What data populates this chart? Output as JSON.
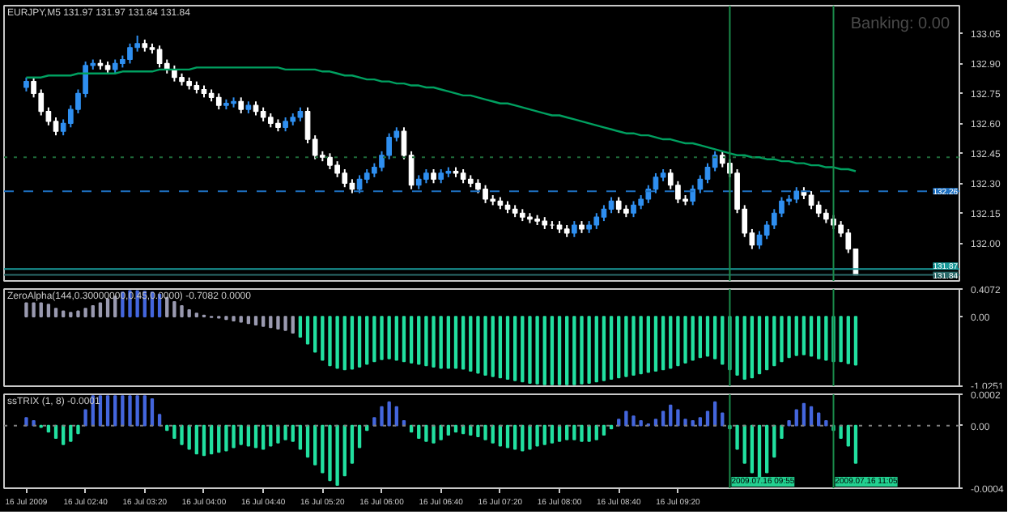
{
  "chart_data": [
    {
      "type": "candlestick",
      "title": "EURJPY,M5 131.97 131.97 131.84 131.84",
      "tick_labels": "y",
      "x": [
        "2009-07-16T02:00",
        "2009-07-16T02:05",
        "2009-07-16T02:10",
        "2009-07-16T02:15",
        "2009-07-16T02:20",
        "2009-07-16T02:25",
        "2009-07-16T02:30",
        "2009-07-16T02:35",
        "2009-07-16T02:40",
        "2009-07-16T02:45",
        "2009-07-16T02:50",
        "2009-07-16T02:55",
        "2009-07-16T03:00",
        "2009-07-16T03:05",
        "2009-07-16T03:10",
        "2009-07-16T03:15",
        "2009-07-16T03:20",
        "2009-07-16T03:25",
        "2009-07-16T03:30",
        "2009-07-16T03:35",
        "2009-07-16T03:40",
        "2009-07-16T03:45",
        "2009-07-16T03:50",
        "2009-07-16T03:55",
        "2009-07-16T04:00",
        "2009-07-16T04:05",
        "2009-07-16T04:10",
        "2009-07-16T04:15",
        "2009-07-16T04:20",
        "2009-07-16T04:25",
        "2009-07-16T04:30",
        "2009-07-16T04:35",
        "2009-07-16T04:40",
        "2009-07-16T04:45",
        "2009-07-16T04:50",
        "2009-07-16T04:55",
        "2009-07-16T05:00",
        "2009-07-16T05:05",
        "2009-07-16T05:10",
        "2009-07-16T05:15",
        "2009-07-16T05:20",
        "2009-07-16T05:25",
        "2009-07-16T05:30",
        "2009-07-16T05:35",
        "2009-07-16T05:40",
        "2009-07-16T05:45",
        "2009-07-16T05:50",
        "2009-07-16T05:55",
        "2009-07-16T06:00",
        "2009-07-16T06:05",
        "2009-07-16T06:10",
        "2009-07-16T06:15",
        "2009-07-16T06:20",
        "2009-07-16T06:25",
        "2009-07-16T06:30",
        "2009-07-16T06:35",
        "2009-07-16T06:40",
        "2009-07-16T06:45",
        "2009-07-16T06:50",
        "2009-07-16T06:55",
        "2009-07-16T07:00",
        "2009-07-16T07:05",
        "2009-07-16T07:10",
        "2009-07-16T07:15",
        "2009-07-16T07:20",
        "2009-07-16T07:25",
        "2009-07-16T07:30",
        "2009-07-16T07:35",
        "2009-07-16T07:40",
        "2009-07-16T07:45",
        "2009-07-16T07:50",
        "2009-07-16T07:55",
        "2009-07-16T08:00",
        "2009-07-16T08:05",
        "2009-07-16T08:10",
        "2009-07-16T08:15",
        "2009-07-16T08:20",
        "2009-07-16T08:25",
        "2009-07-16T08:30",
        "2009-07-16T08:35",
        "2009-07-16T08:40",
        "2009-07-16T08:45",
        "2009-07-16T08:50",
        "2009-07-16T08:55",
        "2009-07-16T09:00",
        "2009-07-16T09:05",
        "2009-07-16T09:10",
        "2009-07-16T09:15",
        "2009-07-16T09:20",
        "2009-07-16T09:25",
        "2009-07-16T09:30",
        "2009-07-16T09:35",
        "2009-07-16T09:40",
        "2009-07-16T09:45",
        "2009-07-16T09:50",
        "2009-07-16T09:55",
        "2009-07-16T10:00",
        "2009-07-16T10:05",
        "2009-07-16T10:10",
        "2009-07-16T10:15",
        "2009-07-16T10:20",
        "2009-07-16T10:25",
        "2009-07-16T10:30",
        "2009-07-16T10:35",
        "2009-07-16T10:40",
        "2009-07-16T10:45",
        "2009-07-16T10:50",
        "2009-07-16T10:55",
        "2009-07-16T11:00",
        "2009-07-16T11:05",
        "2009-07-16T11:10",
        "2009-07-16T11:15",
        "2009-07-16T11:20"
      ],
      "xlim": [
        "2009-07-16T01:45",
        "2009-07-16T12:30"
      ],
      "ohlc": [
        [
          132.78,
          132.83,
          132.76,
          132.81
        ],
        [
          132.81,
          132.83,
          132.73,
          132.75
        ],
        [
          132.75,
          132.77,
          132.64,
          132.66
        ],
        [
          132.66,
          132.68,
          132.59,
          132.61
        ],
        [
          132.61,
          132.63,
          132.54,
          132.56
        ],
        [
          132.56,
          132.62,
          132.54,
          132.6
        ],
        [
          132.6,
          132.69,
          132.58,
          132.67
        ],
        [
          132.67,
          132.77,
          132.65,
          132.75
        ],
        [
          132.75,
          132.91,
          132.73,
          132.89
        ],
        [
          132.89,
          132.92,
          132.87,
          132.9
        ],
        [
          132.9,
          132.92,
          132.87,
          132.89
        ],
        [
          132.89,
          132.91,
          132.85,
          132.87
        ],
        [
          132.87,
          132.92,
          132.85,
          132.9
        ],
        [
          132.9,
          132.94,
          132.88,
          132.92
        ],
        [
          132.92,
          133.0,
          132.9,
          132.98
        ],
        [
          132.98,
          133.04,
          132.96,
          133.0
        ],
        [
          133.0,
          133.02,
          132.96,
          132.98
        ],
        [
          132.98,
          133.0,
          132.95,
          132.97
        ],
        [
          132.97,
          132.99,
          132.88,
          132.9
        ],
        [
          132.9,
          132.92,
          132.85,
          132.87
        ],
        [
          132.87,
          132.89,
          132.81,
          132.83
        ],
        [
          132.83,
          132.85,
          132.79,
          132.81
        ],
        [
          132.81,
          132.83,
          132.77,
          132.79
        ],
        [
          132.79,
          132.81,
          132.75,
          132.77
        ],
        [
          132.77,
          132.79,
          132.73,
          132.75
        ],
        [
          132.75,
          132.77,
          132.71,
          132.73
        ],
        [
          132.73,
          132.75,
          132.67,
          132.69
        ],
        [
          132.69,
          132.72,
          132.67,
          132.7
        ],
        [
          132.7,
          132.73,
          132.68,
          132.71
        ],
        [
          132.71,
          132.73,
          132.65,
          132.67
        ],
        [
          132.67,
          132.71,
          132.65,
          132.69
        ],
        [
          132.69,
          132.71,
          132.64,
          132.66
        ],
        [
          132.66,
          132.68,
          132.61,
          132.63
        ],
        [
          132.63,
          132.65,
          132.58,
          132.6
        ],
        [
          132.6,
          132.62,
          132.56,
          132.58
        ],
        [
          132.58,
          132.63,
          132.56,
          132.61
        ],
        [
          132.61,
          132.65,
          132.59,
          132.63
        ],
        [
          132.63,
          132.68,
          132.61,
          132.66
        ],
        [
          132.66,
          132.68,
          132.5,
          132.52
        ],
        [
          132.52,
          132.54,
          132.42,
          132.44
        ],
        [
          132.44,
          132.46,
          132.41,
          132.43
        ],
        [
          132.43,
          132.45,
          132.37,
          132.39
        ],
        [
          132.39,
          132.41,
          132.33,
          132.35
        ],
        [
          132.35,
          132.37,
          132.28,
          132.3
        ],
        [
          132.3,
          132.32,
          132.25,
          132.27
        ],
        [
          132.27,
          132.34,
          132.25,
          132.32
        ],
        [
          132.32,
          132.37,
          132.3,
          132.35
        ],
        [
          132.35,
          132.4,
          132.33,
          132.38
        ],
        [
          132.38,
          132.46,
          132.36,
          132.44
        ],
        [
          132.44,
          132.55,
          132.42,
          132.53
        ],
        [
          132.53,
          132.58,
          132.51,
          132.56
        ],
        [
          132.56,
          132.58,
          132.42,
          132.44
        ],
        [
          132.44,
          132.46,
          132.27,
          132.29
        ],
        [
          132.29,
          132.34,
          132.27,
          132.32
        ],
        [
          132.32,
          132.37,
          132.3,
          132.35
        ],
        [
          132.35,
          132.37,
          132.3,
          132.32
        ],
        [
          132.32,
          132.37,
          132.3,
          132.35
        ],
        [
          132.35,
          132.38,
          132.33,
          132.36
        ],
        [
          132.36,
          132.38,
          132.33,
          132.35
        ],
        [
          132.35,
          132.37,
          132.3,
          132.32
        ],
        [
          132.32,
          132.34,
          132.28,
          132.3
        ],
        [
          132.3,
          132.32,
          132.25,
          132.27
        ],
        [
          132.27,
          132.29,
          132.2,
          132.22
        ],
        [
          132.22,
          132.24,
          132.19,
          132.21
        ],
        [
          132.21,
          132.23,
          132.17,
          132.19
        ],
        [
          132.19,
          132.21,
          132.15,
          132.17
        ],
        [
          132.17,
          132.19,
          132.13,
          132.15
        ],
        [
          132.15,
          132.17,
          132.11,
          132.13
        ],
        [
          132.13,
          132.15,
          132.1,
          132.12
        ],
        [
          132.12,
          132.14,
          132.09,
          132.11
        ],
        [
          132.11,
          132.13,
          132.07,
          132.09
        ],
        [
          132.09,
          132.11,
          132.07,
          132.09
        ],
        [
          132.09,
          132.11,
          132.05,
          132.07
        ],
        [
          132.07,
          132.09,
          132.03,
          132.05
        ],
        [
          132.05,
          132.11,
          132.03,
          132.09
        ],
        [
          132.09,
          132.11,
          132.05,
          132.07
        ],
        [
          132.07,
          132.11,
          132.05,
          132.09
        ],
        [
          132.09,
          132.15,
          132.07,
          132.13
        ],
        [
          132.13,
          132.19,
          132.11,
          132.17
        ],
        [
          132.17,
          132.23,
          132.15,
          132.21
        ],
        [
          132.21,
          132.23,
          132.15,
          132.17
        ],
        [
          132.17,
          132.19,
          132.13,
          132.15
        ],
        [
          132.15,
          132.21,
          132.13,
          132.19
        ],
        [
          132.19,
          132.24,
          132.17,
          132.22
        ],
        [
          132.22,
          132.29,
          132.2,
          132.27
        ],
        [
          132.27,
          132.35,
          132.25,
          132.33
        ],
        [
          132.33,
          132.37,
          132.31,
          132.35
        ],
        [
          132.35,
          132.37,
          132.27,
          132.29
        ],
        [
          132.29,
          132.31,
          132.2,
          132.22
        ],
        [
          132.22,
          132.24,
          132.19,
          132.21
        ],
        [
          132.21,
          132.29,
          132.19,
          132.27
        ],
        [
          132.27,
          132.34,
          132.25,
          132.32
        ],
        [
          132.32,
          132.4,
          132.3,
          132.38
        ],
        [
          132.38,
          132.46,
          132.36,
          132.44
        ],
        [
          132.44,
          132.46,
          132.38,
          132.4
        ],
        [
          132.4,
          132.42,
          132.33,
          132.35
        ],
        [
          132.35,
          132.37,
          132.15,
          132.17
        ],
        [
          132.17,
          132.19,
          132.03,
          132.05
        ],
        [
          132.05,
          132.07,
          131.97,
          131.99
        ],
        [
          131.99,
          132.06,
          131.97,
          132.04
        ],
        [
          132.04,
          132.11,
          132.02,
          132.09
        ],
        [
          132.09,
          132.17,
          132.07,
          132.15
        ],
        [
          132.15,
          132.23,
          132.13,
          132.21
        ],
        [
          132.21,
          132.24,
          132.19,
          132.22
        ],
        [
          132.22,
          132.28,
          132.2,
          132.26
        ],
        [
          132.26,
          132.28,
          132.22,
          132.24
        ],
        [
          132.24,
          132.26,
          132.17,
          132.19
        ],
        [
          132.19,
          132.21,
          132.13,
          132.15
        ],
        [
          132.15,
          132.17,
          132.1,
          132.12
        ],
        [
          132.12,
          132.14,
          132.07,
          132.09
        ],
        [
          132.09,
          132.11,
          132.03,
          132.05
        ],
        [
          132.05,
          132.07,
          131.95,
          131.97
        ],
        [
          131.97,
          131.97,
          131.84,
          131.84
        ]
      ],
      "series": [
        {
          "type": "line",
          "color": "#00a060",
          "values": [
            132.83,
            132.83,
            132.83,
            132.84,
            132.84,
            132.84,
            132.84,
            132.85,
            132.85,
            132.85,
            132.85,
            132.85,
            132.85,
            132.86,
            132.86,
            132.86,
            132.86,
            132.86,
            132.87,
            132.87,
            132.87,
            132.87,
            132.87,
            132.88,
            132.88,
            132.88,
            132.88,
            132.88,
            132.88,
            132.88,
            132.88,
            132.88,
            132.88,
            132.88,
            132.88,
            132.87,
            132.87,
            132.87,
            132.87,
            132.87,
            132.86,
            132.86,
            132.85,
            132.84,
            132.84,
            132.83,
            132.82,
            132.82,
            132.81,
            132.81,
            132.8,
            132.8,
            132.79,
            132.79,
            132.78,
            132.78,
            132.77,
            132.76,
            132.75,
            132.74,
            132.74,
            132.73,
            132.72,
            132.71,
            132.7,
            132.7,
            132.69,
            132.68,
            132.67,
            132.66,
            132.65,
            132.64,
            132.64,
            132.63,
            132.62,
            132.61,
            132.6,
            132.59,
            132.58,
            132.57,
            132.56,
            132.55,
            132.55,
            132.54,
            132.54,
            132.53,
            132.52,
            132.52,
            132.51,
            132.5,
            132.5,
            132.49,
            132.48,
            132.47,
            132.46,
            132.45,
            132.44,
            132.44,
            132.43,
            132.43,
            132.42,
            132.42,
            132.41,
            132.41,
            132.4,
            132.4,
            132.39,
            132.39,
            132.38,
            132.38,
            132.37,
            132.37,
            132.36
          ]
        }
      ],
      "ylim": [
        131.81,
        133.19
      ],
      "yticks": [
        133.05,
        {
          "value": 132.9,
          "label": "132.90"
        },
        132.75,
        {
          "value": 132.6,
          "label": "132.60"
        },
        132.45,
        {
          "value": 132.3,
          "label": "132.30"
        },
        132.15,
        {
          "value": 132.0,
          "label": "132.00"
        }
      ],
      "ref_lines": [
        {
          "axis": "y",
          "value": 132.43,
          "color": "#1f6b3a",
          "line_style": "dotted"
        },
        {
          "axis": "y",
          "value": 132.26,
          "label": "132.26",
          "color": "#1e70c0",
          "line_style": "dashed"
        },
        {
          "axis": "y",
          "value": 131.87,
          "label": "131.87",
          "color": "#1a9a9a",
          "line_style": "solid"
        },
        {
          "axis": "y",
          "value": 131.84,
          "label": "131.84",
          "color": "#2a6a6a",
          "line_style": "solid"
        },
        {
          "axis": "x",
          "value": "2009-07-16T09:55",
          "color": "#1a8a4a",
          "line_style": "solid"
        },
        {
          "axis": "x",
          "value": "2009-07-16T11:05",
          "color": "#1a8a4a",
          "line_style": "solid"
        }
      ],
      "annotations": [
        "Banking: 0.00"
      ]
    },
    {
      "type": "bar",
      "title": "ZeroAlpha(144,0.30000000,0.45,0.0000) -0.7082 0.0000",
      "tick_labels": "y",
      "x": [
        "2009-07-16T02:00",
        "2009-07-16T02:05",
        "2009-07-16T02:10",
        "2009-07-16T02:15",
        "2009-07-16T02:20",
        "2009-07-16T02:25",
        "2009-07-16T02:30",
        "2009-07-16T02:35",
        "2009-07-16T02:40",
        "2009-07-16T02:45",
        "2009-07-16T02:50",
        "2009-07-16T02:55",
        "2009-07-16T03:00",
        "2009-07-16T03:05",
        "2009-07-16T03:10",
        "2009-07-16T03:15",
        "2009-07-16T03:20",
        "2009-07-16T03:25",
        "2009-07-16T03:30",
        "2009-07-16T03:35",
        "2009-07-16T03:40",
        "2009-07-16T03:45",
        "2009-07-16T03:50",
        "2009-07-16T03:55",
        "2009-07-16T04:00",
        "2009-07-16T04:05",
        "2009-07-16T04:10",
        "2009-07-16T04:15",
        "2009-07-16T04:20",
        "2009-07-16T04:25",
        "2009-07-16T04:30",
        "2009-07-16T04:35",
        "2009-07-16T04:40",
        "2009-07-16T04:45",
        "2009-07-16T04:50",
        "2009-07-16T04:55",
        "2009-07-16T05:00",
        "2009-07-16T05:05",
        "2009-07-16T05:10",
        "2009-07-16T05:15",
        "2009-07-16T05:20",
        "2009-07-16T05:25",
        "2009-07-16T05:30",
        "2009-07-16T05:35",
        "2009-07-16T05:40",
        "2009-07-16T05:45",
        "2009-07-16T05:50",
        "2009-07-16T05:55",
        "2009-07-16T06:00",
        "2009-07-16T06:05",
        "2009-07-16T06:10",
        "2009-07-16T06:15",
        "2009-07-16T06:20",
        "2009-07-16T06:25",
        "2009-07-16T06:30",
        "2009-07-16T06:35",
        "2009-07-16T06:40",
        "2009-07-16T06:45",
        "2009-07-16T06:50",
        "2009-07-16T06:55",
        "2009-07-16T07:00",
        "2009-07-16T07:05",
        "2009-07-16T07:10",
        "2009-07-16T07:15",
        "2009-07-16T07:20",
        "2009-07-16T07:25",
        "2009-07-16T07:30",
        "2009-07-16T07:35",
        "2009-07-16T07:40",
        "2009-07-16T07:45",
        "2009-07-16T07:50",
        "2009-07-16T07:55",
        "2009-07-16T08:00",
        "2009-07-16T08:05",
        "2009-07-16T08:10",
        "2009-07-16T08:15",
        "2009-07-16T08:20",
        "2009-07-16T08:25",
        "2009-07-16T08:30",
        "2009-07-16T08:35",
        "2009-07-16T08:40",
        "2009-07-16T08:45",
        "2009-07-16T08:50",
        "2009-07-16T08:55",
        "2009-07-16T09:00",
        "2009-07-16T09:05",
        "2009-07-16T09:10",
        "2009-07-16T09:15",
        "2009-07-16T09:20",
        "2009-07-16T09:25",
        "2009-07-16T09:30",
        "2009-07-16T09:35",
        "2009-07-16T09:40",
        "2009-07-16T09:45",
        "2009-07-16T09:50",
        "2009-07-16T09:55",
        "2009-07-16T10:00",
        "2009-07-16T10:05",
        "2009-07-16T10:10",
        "2009-07-16T10:15",
        "2009-07-16T10:20",
        "2009-07-16T10:25",
        "2009-07-16T10:30",
        "2009-07-16T10:35",
        "2009-07-16T10:40",
        "2009-07-16T10:45",
        "2009-07-16T10:50",
        "2009-07-16T10:55",
        "2009-07-16T11:00",
        "2009-07-16T11:05",
        "2009-07-16T11:10",
        "2009-07-16T11:15",
        "2009-07-16T11:20"
      ],
      "xlim": [
        "2009-07-16T01:45",
        "2009-07-16T12:30"
      ],
      "values": [
        0.2,
        0.2,
        0.2,
        0.18,
        0.12,
        0.08,
        0.06,
        0.08,
        0.12,
        0.16,
        0.2,
        0.26,
        0.3,
        0.36,
        0.38,
        0.38,
        0.37,
        0.36,
        0.33,
        0.28,
        0.22,
        0.16,
        0.1,
        0.05,
        0.02,
        -0.01,
        -0.02,
        -0.04,
        -0.06,
        -0.08,
        -0.1,
        -0.12,
        -0.14,
        -0.16,
        -0.18,
        -0.2,
        -0.24,
        -0.3,
        -0.4,
        -0.52,
        -0.64,
        -0.72,
        -0.76,
        -0.78,
        -0.77,
        -0.74,
        -0.7,
        -0.66,
        -0.63,
        -0.62,
        -0.64,
        -0.66,
        -0.68,
        -0.7,
        -0.72,
        -0.74,
        -0.76,
        -0.76,
        -0.76,
        -0.77,
        -0.8,
        -0.83,
        -0.86,
        -0.88,
        -0.9,
        -0.92,
        -0.94,
        -0.96,
        -0.98,
        -0.99,
        -1.0,
        -1.0,
        -1.0,
        -1.0,
        -1.0,
        -0.99,
        -0.98,
        -0.96,
        -0.94,
        -0.92,
        -0.9,
        -0.88,
        -0.86,
        -0.84,
        -0.82,
        -0.8,
        -0.78,
        -0.76,
        -0.72,
        -0.68,
        -0.64,
        -0.6,
        -0.58,
        -0.62,
        -0.7,
        -0.78,
        -0.86,
        -0.92,
        -0.9,
        -0.84,
        -0.78,
        -0.72,
        -0.66,
        -0.6,
        -0.57,
        -0.56,
        -0.58,
        -0.62,
        -0.64,
        -0.66,
        -0.66,
        -0.69,
        -0.71
      ],
      "colors": [
        "#9a9ab0",
        "#9a9ab0",
        "#9a9ab0",
        "#9a9ab0",
        "#9a9ab0",
        "#9a9ab0",
        "#9a9ab0",
        "#9a9ab0",
        "#9a9ab0",
        "#9a9ab0",
        "#9a9ab0",
        "#9a9ab0",
        "#9a9ab0",
        "#4466dd",
        "#4466dd",
        "#4466dd",
        "#4466dd",
        "#4466dd",
        "#4466dd",
        "#9a9ab0",
        "#9a9ab0",
        "#9a9ab0",
        "#9a9ab0",
        "#9a9ab0",
        "#9a9ab0",
        "#9a9ab0",
        "#9a9ab0",
        "#9a9ab0",
        "#9a9ab0",
        "#9a9ab0",
        "#9a9ab0",
        "#9a9ab0",
        "#9a9ab0",
        "#9a9ab0",
        "#9a9ab0",
        "#9a9ab0",
        "#9a9ab0",
        "#22e0a0",
        "#22e0a0",
        "#22e0a0",
        "#22e0a0",
        "#22e0a0",
        "#22e0a0",
        "#22e0a0",
        "#22e0a0",
        "#22e0a0",
        "#22e0a0",
        "#22e0a0",
        "#22e0a0",
        "#22e0a0",
        "#22e0a0",
        "#22e0a0",
        "#22e0a0",
        "#22e0a0",
        "#22e0a0",
        "#22e0a0",
        "#22e0a0",
        "#22e0a0",
        "#22e0a0",
        "#22e0a0",
        "#22e0a0",
        "#22e0a0",
        "#22e0a0",
        "#22e0a0",
        "#22e0a0",
        "#22e0a0",
        "#22e0a0",
        "#22e0a0",
        "#22e0a0",
        "#22e0a0",
        "#22e0a0",
        "#22e0a0",
        "#22e0a0",
        "#22e0a0",
        "#22e0a0",
        "#22e0a0",
        "#22e0a0",
        "#22e0a0",
        "#22e0a0",
        "#22e0a0",
        "#22e0a0",
        "#22e0a0",
        "#22e0a0",
        "#22e0a0",
        "#22e0a0",
        "#22e0a0",
        "#22e0a0",
        "#22e0a0",
        "#22e0a0",
        "#22e0a0",
        "#22e0a0",
        "#22e0a0",
        "#22e0a0",
        "#22e0a0",
        "#22e0a0",
        "#22e0a0",
        "#22e0a0",
        "#22e0a0",
        "#22e0a0",
        "#22e0a0",
        "#22e0a0",
        "#22e0a0",
        "#22e0a0",
        "#22e0a0",
        "#22e0a0",
        "#22e0a0",
        "#22e0a0",
        "#22e0a0",
        "#22e0a0",
        "#22e0a0",
        "#22e0a0",
        "#22e0a0",
        "#22e0a0"
      ],
      "ylim": [
        -1.0251,
        0.4072
      ],
      "yticks": [
        0.4072,
        {
          "value": 0,
          "label": "0.00"
        },
        -1.0251
      ],
      "ref_lines": [
        {
          "axis": "x",
          "value": "2009-07-16T09:55",
          "color": "#1a8a4a",
          "line_style": "solid"
        },
        {
          "axis": "x",
          "value": "2009-07-16T11:05",
          "color": "#1a8a4a",
          "line_style": "solid"
        }
      ]
    },
    {
      "type": "bar",
      "title": "ssTRIX (1, 8) -0.0001",
      "x": [
        "2009-07-16T02:00",
        "2009-07-16T02:05",
        "2009-07-16T02:10",
        "2009-07-16T02:15",
        "2009-07-16T02:20",
        "2009-07-16T02:25",
        "2009-07-16T02:30",
        "2009-07-16T02:35",
        "2009-07-16T02:40",
        "2009-07-16T02:45",
        "2009-07-16T02:50",
        "2009-07-16T02:55",
        "2009-07-16T03:00",
        "2009-07-16T03:05",
        "2009-07-16T03:10",
        "2009-07-16T03:15",
        "2009-07-16T03:20",
        "2009-07-16T03:25",
        "2009-07-16T03:30",
        "2009-07-16T03:35",
        "2009-07-16T03:40",
        "2009-07-16T03:45",
        "2009-07-16T03:50",
        "2009-07-16T03:55",
        "2009-07-16T04:00",
        "2009-07-16T04:05",
        "2009-07-16T04:10",
        "2009-07-16T04:15",
        "2009-07-16T04:20",
        "2009-07-16T04:25",
        "2009-07-16T04:30",
        "2009-07-16T04:35",
        "2009-07-16T04:40",
        "2009-07-16T04:45",
        "2009-07-16T04:50",
        "2009-07-16T04:55",
        "2009-07-16T05:00",
        "2009-07-16T05:05",
        "2009-07-16T05:10",
        "2009-07-16T05:15",
        "2009-07-16T05:20",
        "2009-07-16T05:25",
        "2009-07-16T05:30",
        "2009-07-16T05:35",
        "2009-07-16T05:40",
        "2009-07-16T05:45",
        "2009-07-16T05:50",
        "2009-07-16T05:55",
        "2009-07-16T06:00",
        "2009-07-16T06:05",
        "2009-07-16T06:10",
        "2009-07-16T06:15",
        "2009-07-16T06:20",
        "2009-07-16T06:25",
        "2009-07-16T06:30",
        "2009-07-16T06:35",
        "2009-07-16T06:40",
        "2009-07-16T06:45",
        "2009-07-16T06:50",
        "2009-07-16T06:55",
        "2009-07-16T07:00",
        "2009-07-16T07:05",
        "2009-07-16T07:10",
        "2009-07-16T07:15",
        "2009-07-16T07:20",
        "2009-07-16T07:25",
        "2009-07-16T07:30",
        "2009-07-16T07:35",
        "2009-07-16T07:40",
        "2009-07-16T07:45",
        "2009-07-16T07:50",
        "2009-07-16T07:55",
        "2009-07-16T08:00",
        "2009-07-16T08:05",
        "2009-07-16T08:10",
        "2009-07-16T08:15",
        "2009-07-16T08:20",
        "2009-07-16T08:25",
        "2009-07-16T08:30",
        "2009-07-16T08:35",
        "2009-07-16T08:40",
        "2009-07-16T08:45",
        "2009-07-16T08:50",
        "2009-07-16T08:55",
        "2009-07-16T09:00",
        "2009-07-16T09:05",
        "2009-07-16T09:10",
        "2009-07-16T09:15",
        "2009-07-16T09:20",
        "2009-07-16T09:25",
        "2009-07-16T09:30",
        "2009-07-16T09:35",
        "2009-07-16T09:40",
        "2009-07-16T09:45",
        "2009-07-16T09:50",
        "2009-07-16T09:55",
        "2009-07-16T10:00",
        "2009-07-16T10:05",
        "2009-07-16T10:10",
        "2009-07-16T10:15",
        "2009-07-16T10:20",
        "2009-07-16T10:25",
        "2009-07-16T10:30",
        "2009-07-16T10:35",
        "2009-07-16T10:40",
        "2009-07-16T10:45",
        "2009-07-16T10:50",
        "2009-07-16T10:55",
        "2009-07-16T11:00",
        "2009-07-16T11:05",
        "2009-07-16T11:10",
        "2009-07-16T11:15",
        "2009-07-16T11:20"
      ],
      "xlim": [
        "2009-07-16T01:45",
        "2009-07-16T12:30"
      ],
      "xticks": [
        {
          "value": "2009-07-16T02:00",
          "label": "16 Jul 2009"
        },
        {
          "value": "2009-07-16T02:40",
          "label": "16 Jul 02:40"
        },
        {
          "value": "2009-07-16T03:20",
          "label": "16 Jul 03:20"
        },
        {
          "value": "2009-07-16T04:00",
          "label": "16 Jul 04:00"
        },
        {
          "value": "2009-07-16T04:40",
          "label": "16 Jul 04:40"
        },
        {
          "value": "2009-07-16T05:20",
          "label": "16 Jul 05:20"
        },
        {
          "value": "2009-07-16T06:00",
          "label": "16 Jul 06:00"
        },
        {
          "value": "2009-07-16T06:40",
          "label": "16 Jul 06:40"
        },
        {
          "value": "2009-07-16T07:20",
          "label": "16 Jul 07:20"
        },
        {
          "value": "2009-07-16T08:00",
          "label": "16 Jul 08:00"
        },
        {
          "value": "2009-07-16T08:40",
          "label": "16 Jul 08:40"
        },
        {
          "value": "2009-07-16T09:20",
          "label": "16 Jul 09:20"
        }
      ],
      "values": [
        5e-05,
        3e-05,
        -1e-05,
        -4e-05,
        -8e-05,
        -0.00012,
        -0.0001,
        -5e-05,
        0.0001,
        0.00019,
        0.00019,
        0.00019,
        0.00019,
        0.00019,
        0.00019,
        0.00019,
        0.00019,
        0.00017,
        7e-05,
        -3e-05,
        -8e-05,
        -0.00012,
        -0.00015,
        -0.00018,
        -0.00019,
        -0.00018,
        -0.00017,
        -0.00016,
        -0.00014,
        -0.00012,
        -0.00013,
        -0.00014,
        -0.00015,
        -0.00013,
        -0.00011,
        -9e-05,
        -0.0001,
        -0.00015,
        -0.0002,
        -0.00025,
        -0.0003,
        -0.00035,
        -0.00038,
        -0.00032,
        -0.00024,
        -0.00014,
        -3e-05,
        5e-05,
        0.00012,
        0.00015,
        0.00012,
        3e-05,
        -4e-05,
        -8e-05,
        -0.0001,
        -0.00011,
        -9e-05,
        -6e-05,
        -4e-05,
        -5e-05,
        -6e-05,
        -7e-05,
        -9e-05,
        -0.00011,
        -0.00013,
        -0.00014,
        -0.00015,
        -0.00016,
        -0.00015,
        -0.00013,
        -0.00012,
        -0.00011,
        -0.0001,
        -9e-05,
        -9e-05,
        -0.0001,
        -0.0001,
        -9e-05,
        -6e-05,
        -2e-05,
        4e-05,
        9e-05,
        6e-05,
        3e-05,
        1e-05,
        4e-05,
        9e-05,
        0.00013,
        0.0001,
        4e-05,
        3e-05,
        5e-05,
        9e-05,
        0.00015,
        8e-05,
        -2e-05,
        -0.00015,
        -0.00024,
        -0.0003,
        -0.00035,
        -0.0003,
        -0.0002,
        -8e-05,
        3e-05,
        0.0001,
        0.00014,
        0.00012,
        8e-05,
        3e-05,
        -3e-05,
        -8e-05,
        -0.00013,
        -0.00024
      ],
      "colors": [
        "#4466dd",
        "#4466dd",
        "#22e0a0",
        "#22e0a0",
        "#22e0a0",
        "#22e0a0",
        "#22e0a0",
        "#22e0a0",
        "#4466dd",
        "#4466dd",
        "#4466dd",
        "#4466dd",
        "#4466dd",
        "#4466dd",
        "#4466dd",
        "#4466dd",
        "#4466dd",
        "#4466dd",
        "#4466dd",
        "#22e0a0",
        "#22e0a0",
        "#22e0a0",
        "#22e0a0",
        "#22e0a0",
        "#22e0a0",
        "#22e0a0",
        "#22e0a0",
        "#22e0a0",
        "#22e0a0",
        "#22e0a0",
        "#22e0a0",
        "#22e0a0",
        "#22e0a0",
        "#22e0a0",
        "#22e0a0",
        "#22e0a0",
        "#22e0a0",
        "#22e0a0",
        "#22e0a0",
        "#22e0a0",
        "#22e0a0",
        "#22e0a0",
        "#22e0a0",
        "#22e0a0",
        "#22e0a0",
        "#22e0a0",
        "#22e0a0",
        "#4466dd",
        "#4466dd",
        "#4466dd",
        "#4466dd",
        "#4466dd",
        "#22e0a0",
        "#22e0a0",
        "#22e0a0",
        "#22e0a0",
        "#22e0a0",
        "#22e0a0",
        "#22e0a0",
        "#22e0a0",
        "#22e0a0",
        "#22e0a0",
        "#22e0a0",
        "#22e0a0",
        "#22e0a0",
        "#22e0a0",
        "#22e0a0",
        "#22e0a0",
        "#22e0a0",
        "#22e0a0",
        "#22e0a0",
        "#22e0a0",
        "#22e0a0",
        "#22e0a0",
        "#22e0a0",
        "#22e0a0",
        "#22e0a0",
        "#22e0a0",
        "#22e0a0",
        "#22e0a0",
        "#4466dd",
        "#4466dd",
        "#4466dd",
        "#4466dd",
        "#4466dd",
        "#4466dd",
        "#4466dd",
        "#4466dd",
        "#4466dd",
        "#4466dd",
        "#4466dd",
        "#4466dd",
        "#4466dd",
        "#4466dd",
        "#4466dd",
        "#22e0a0",
        "#22e0a0",
        "#22e0a0",
        "#22e0a0",
        "#22e0a0",
        "#22e0a0",
        "#22e0a0",
        "#22e0a0",
        "#4466dd",
        "#4466dd",
        "#4466dd",
        "#4466dd",
        "#4466dd",
        "#4466dd",
        "#22e0a0",
        "#22e0a0",
        "#22e0a0",
        "#22e0a0"
      ],
      "ylim": [
        -0.0004,
        0.0002
      ],
      "yticks": [
        0.0002,
        {
          "value": 0,
          "label": "0.00"
        },
        -0.0004
      ],
      "ref_lines": [
        {
          "axis": "y",
          "value": 0,
          "color": "#808080",
          "line_style": "dotted"
        },
        {
          "axis": "x",
          "value": "2009-07-16T09:55",
          "label": "2009.07.16 09:55",
          "color": "#1a8a4a",
          "line_style": "solid"
        },
        {
          "axis": "x",
          "value": "2009-07-16T11:05",
          "label": "2009.07.16 11:05",
          "color": "#1a8a4a",
          "line_style": "solid"
        }
      ]
    }
  ]
}
